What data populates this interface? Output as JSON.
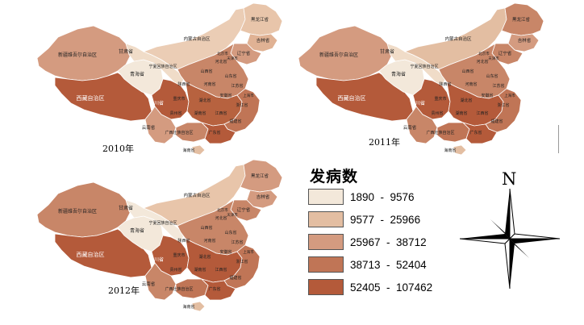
{
  "maps": [
    {
      "year_label": "2010年",
      "fills": {
        "xinjiang": "#D49B80",
        "xizang": "#B45A3A",
        "qinghai": "#F3E8DA",
        "gansu": "#F0DCC8",
        "neimenggu": "#EBCDB5",
        "heilongjiang": "#E8C5AA",
        "jilin": "#E0B294",
        "liaoning": "#D49B80",
        "north": "#C88668",
        "sichuan": "#B45A3A",
        "yunnan": "#D49B80",
        "guangxi": "#C88668",
        "guangdong": "#B45A3A",
        "southeast": "#C07556",
        "central": "#B7623F",
        "hainan": "#E3BEA2"
      }
    },
    {
      "year_label": "2011年",
      "fills": {
        "xinjiang": "#D49B80",
        "xizang": "#B45A3A",
        "qinghai": "#F3E8DA",
        "gansu": "#F0DCC8",
        "neimenggu": "#E3BEA2",
        "heilongjiang": "#C88668",
        "jilin": "#D49B80",
        "liaoning": "#C88668",
        "north": "#C88668",
        "sichuan": "#B45A3A",
        "yunnan": "#C88668",
        "guangxi": "#C07556",
        "guangdong": "#B45A3A",
        "southeast": "#C07556",
        "central": "#B45A3A",
        "hainan": "#E3BEA2"
      }
    },
    {
      "year_label": "2012年",
      "fills": {
        "xinjiang": "#C88668",
        "xizang": "#B45A3A",
        "qinghai": "#F3E8DA",
        "gansu": "#F3E8DA",
        "neimenggu": "#E8C5AA",
        "heilongjiang": "#D49B80",
        "jilin": "#D49B80",
        "liaoning": "#C88668",
        "north": "#C88668",
        "sichuan": "#B45A3A",
        "yunnan": "#C88668",
        "guangxi": "#C07556",
        "guangdong": "#B45A3A",
        "southeast": "#C07556",
        "central": "#B45A3A",
        "hainan": "#E3BEA2"
      }
    }
  ],
  "province_labels": {
    "xinjiang": "新疆维吾尔自治区",
    "xizang": "西藏自治区",
    "qinghai": "青海省",
    "gansu": "甘肃省",
    "neimenggu": "内蒙古自治区",
    "heilongjiang": "黑龙江省",
    "jilin": "吉林省",
    "liaoning": "辽宁省",
    "ningxia": "宁夏回族自治区",
    "shanxi": "山西省",
    "hebei": "河北省",
    "beijing": "北京市",
    "tianjin": "天津市",
    "shandong": "山东省",
    "shaanxi": "陕西省",
    "henan": "河南省",
    "jiangsu": "江苏省",
    "anhui": "安徽省",
    "shanghai": "上海市",
    "sichuan": "四川省",
    "chongqing": "重庆市",
    "hubei": "湖北省",
    "zhejiang": "浙江省",
    "guizhou": "贵州省",
    "hunan": "湖南省",
    "jiangxi": "江西省",
    "fujian": "福建省",
    "yunnan": "云南省",
    "guangxi": "广西壮族自治区",
    "guangdong": "广东省",
    "hainan": "海南省"
  },
  "legend": {
    "title": "发病数",
    "items": [
      {
        "range": "1890  -  9576",
        "color": "#F3E8DA"
      },
      {
        "range": "9577  -  25966",
        "color": "#E3BEA2"
      },
      {
        "range": "25967  -  38712",
        "color": "#D49B80"
      },
      {
        "range": "38713  -  52404",
        "color": "#C07556"
      },
      {
        "range": "52405  -  107462",
        "color": "#B45A3A"
      }
    ]
  },
  "compass": {
    "north_label": "N"
  }
}
